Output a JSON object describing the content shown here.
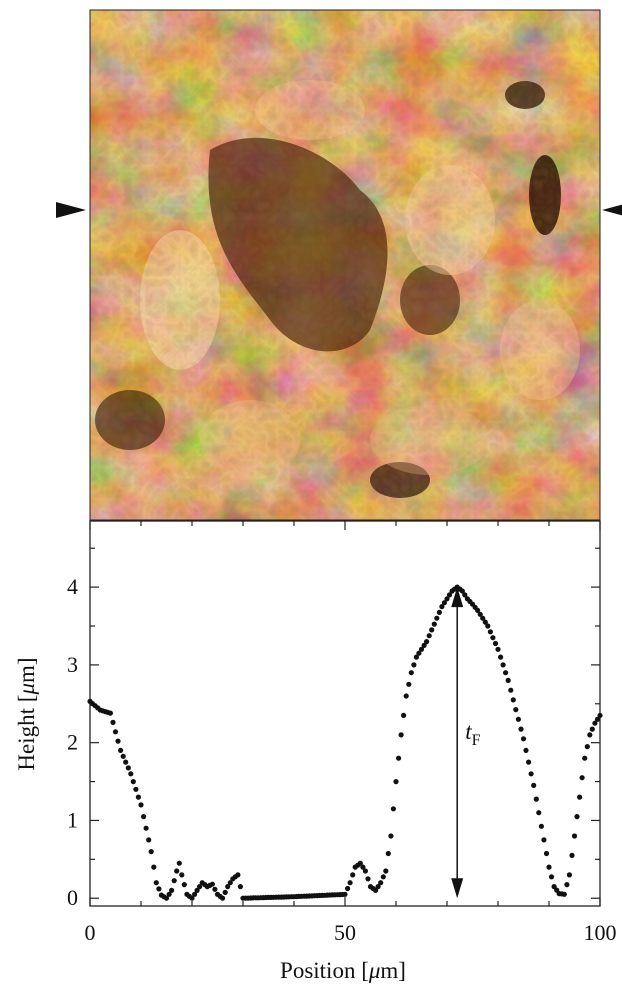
{
  "micrograph": {
    "description_marker_left": "scan-line-marker",
    "description_marker_right": "scan-line-marker",
    "colormap": [
      "#3a1a08",
      "#7a3a12",
      "#c46a2a",
      "#eaa060",
      "#fbe0bc"
    ]
  },
  "chart_data": {
    "type": "scatter",
    "xlabel_prefix": "Position [",
    "xlabel_unit": "μ",
    "xlabel_suffix": "m]",
    "ylabel_prefix": "Height [",
    "ylabel_unit": "μ",
    "ylabel_suffix": "m]",
    "xlim": [
      0,
      100
    ],
    "ylim": [
      -0.1,
      4.85
    ],
    "xticks": [
      0,
      50,
      100
    ],
    "yticks": [
      0,
      1,
      2,
      3,
      4
    ],
    "xtick_labels": [
      "0",
      "50",
      "100"
    ],
    "ytick_labels": [
      "0",
      "1",
      "2",
      "3",
      "4"
    ],
    "annotation_main": "t",
    "annotation_sub": "F",
    "annotation_x": 72,
    "annotation_y_top": 4.0,
    "annotation_y_bottom": 0.0,
    "point_color": "#111111",
    "profile": [
      [
        0,
        2.53
      ],
      [
        2,
        2.42
      ],
      [
        4,
        2.38
      ],
      [
        6,
        1.9
      ],
      [
        8,
        1.6
      ],
      [
        10,
        1.2
      ],
      [
        12,
        0.6
      ],
      [
        13,
        0.2
      ],
      [
        14,
        0.04
      ],
      [
        15,
        0.0
      ],
      [
        16,
        0.1
      ],
      [
        17,
        0.35
      ],
      [
        17.5,
        0.45
      ],
      [
        18,
        0.3
      ],
      [
        19,
        0.05
      ],
      [
        20,
        0.0
      ],
      [
        21,
        0.1
      ],
      [
        22,
        0.2
      ],
      [
        23,
        0.15
      ],
      [
        24,
        0.18
      ],
      [
        25,
        0.05
      ],
      [
        26,
        0.0
      ],
      [
        27,
        0.15
      ],
      [
        28,
        0.25
      ],
      [
        29,
        0.3
      ],
      [
        30,
        0.0
      ],
      [
        40,
        0.02
      ],
      [
        50,
        0.05
      ],
      [
        51,
        0.2
      ],
      [
        52,
        0.4
      ],
      [
        53,
        0.45
      ],
      [
        54,
        0.35
      ],
      [
        55,
        0.15
      ],
      [
        56,
        0.1
      ],
      [
        57,
        0.2
      ],
      [
        58,
        0.35
      ],
      [
        59,
        0.8
      ],
      [
        60,
        1.5
      ],
      [
        61,
        2.1
      ],
      [
        62,
        2.6
      ],
      [
        63,
        2.9
      ],
      [
        64,
        3.1
      ],
      [
        65,
        3.2
      ],
      [
        66,
        3.3
      ],
      [
        67,
        3.45
      ],
      [
        68,
        3.6
      ],
      [
        69,
        3.75
      ],
      [
        70,
        3.85
      ],
      [
        71,
        3.95
      ],
      [
        72,
        4.0
      ],
      [
        73,
        3.95
      ],
      [
        74,
        3.85
      ],
      [
        75,
        3.78
      ],
      [
        76,
        3.7
      ],
      [
        77,
        3.6
      ],
      [
        78,
        3.5
      ],
      [
        79,
        3.35
      ],
      [
        80,
        3.2
      ],
      [
        81,
        3.0
      ],
      [
        82,
        2.8
      ],
      [
        83,
        2.55
      ],
      [
        84,
        2.3
      ],
      [
        85,
        2.05
      ],
      [
        86,
        1.75
      ],
      [
        87,
        1.45
      ],
      [
        88,
        1.1
      ],
      [
        89,
        0.75
      ],
      [
        90,
        0.4
      ],
      [
        91,
        0.15
      ],
      [
        92,
        0.06
      ],
      [
        93,
        0.05
      ],
      [
        94,
        0.3
      ],
      [
        95,
        0.8
      ],
      [
        96,
        1.3
      ],
      [
        97,
        1.8
      ],
      [
        98,
        2.1
      ],
      [
        99,
        2.25
      ],
      [
        100,
        2.35
      ]
    ]
  }
}
